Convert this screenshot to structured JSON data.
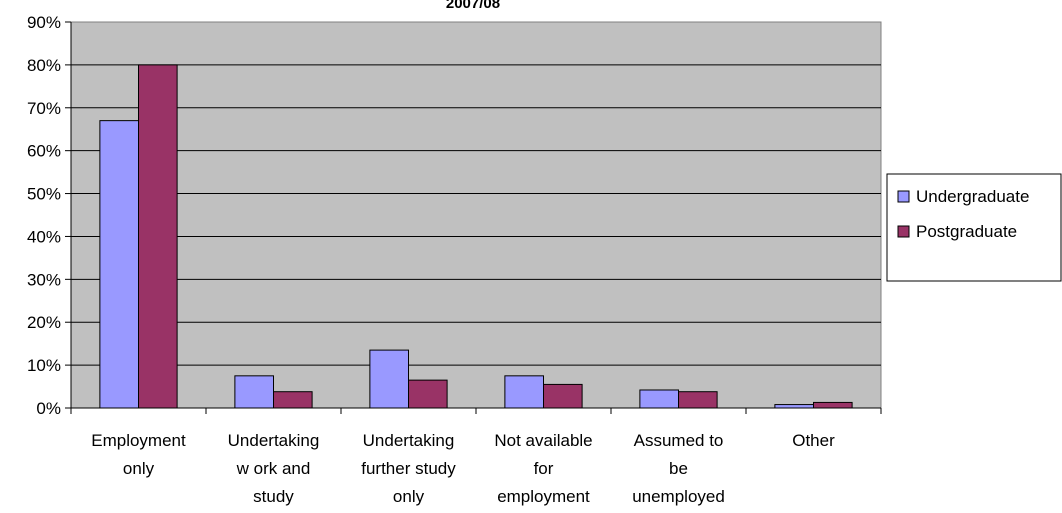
{
  "chart_data": {
    "type": "bar",
    "title": "2007/08",
    "xlabel": "",
    "ylabel": "",
    "ylim": [
      0,
      90
    ],
    "y_ticks": [
      "0%",
      "10%",
      "20%",
      "30%",
      "40%",
      "50%",
      "60%",
      "70%",
      "80%",
      "90%"
    ],
    "grid": true,
    "legend_position": "right",
    "categories": [
      [
        "Employment",
        "only"
      ],
      [
        "Undertaking",
        "w ork and",
        "study"
      ],
      [
        "Undertaking",
        "further study",
        "only"
      ],
      [
        "Not available",
        "for",
        "employment"
      ],
      [
        "Assumed to",
        "be",
        "unemployed"
      ],
      [
        "Other"
      ]
    ],
    "series": [
      {
        "name": "Undergraduate",
        "color": "#9999FF",
        "values": [
          67,
          7.5,
          13.5,
          7.5,
          4.2,
          0.8
        ]
      },
      {
        "name": "Postgraduate",
        "color": "#993366",
        "values": [
          80,
          3.8,
          6.5,
          5.5,
          3.8,
          1.3
        ]
      }
    ],
    "plot_background": "#C0C0C0"
  }
}
